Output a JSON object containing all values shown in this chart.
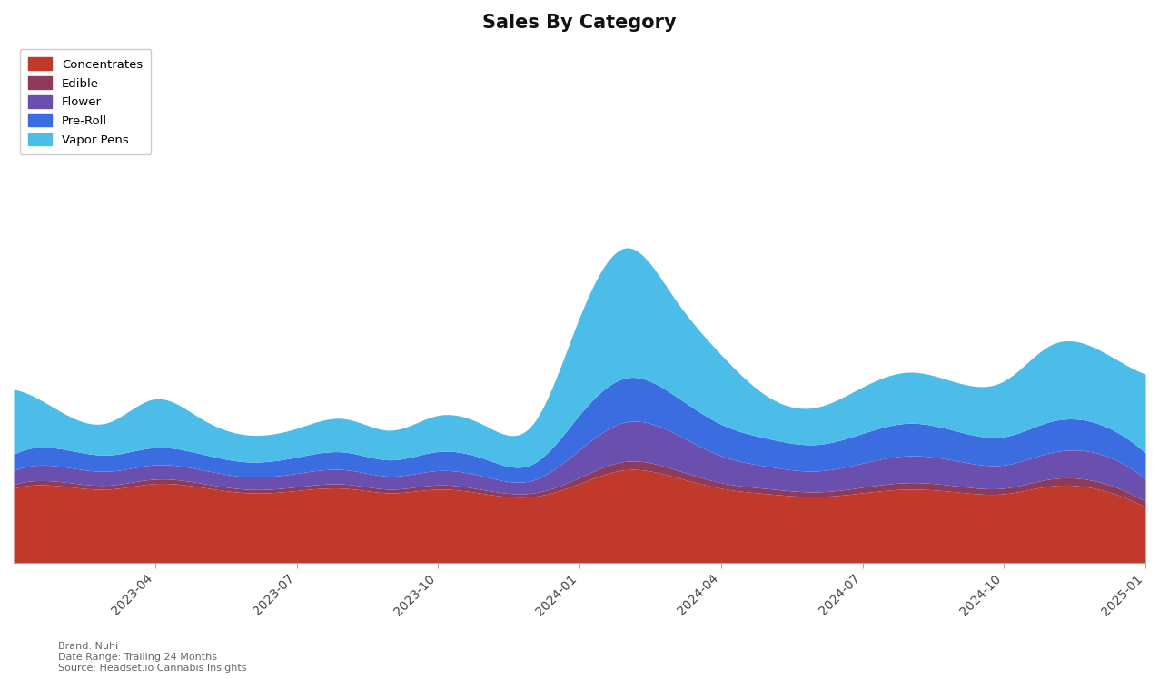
{
  "title": "Sales By Category",
  "categories": [
    "Concentrates",
    "Edible",
    "Flower",
    "Pre-Roll",
    "Vapor Pens"
  ],
  "colors": [
    "#c0392b",
    "#8e3a59",
    "#6b4faf",
    "#3b6de0",
    "#4bbde8"
  ],
  "x_labels": [
    "2023-04",
    "2023-07",
    "2023-10",
    "2024-01",
    "2024-04",
    "2024-07",
    "2024-10",
    "2025-01"
  ],
  "background_color": "#ffffff",
  "brand_text": "Brand: Nuhi\nDate Range: Trailing 24 Months\nSource: Headset.io Cannabis Insights",
  "concentrates": [
    1600,
    1650,
    1580,
    1700,
    1620,
    1500,
    1550,
    1600,
    1500,
    1580,
    1480,
    1420,
    1700,
    2000,
    1850,
    1600,
    1480,
    1420,
    1500,
    1580,
    1520,
    1480,
    1650,
    1580,
    1200
  ],
  "edible": [
    80,
    90,
    85,
    95,
    85,
    75,
    80,
    90,
    80,
    90,
    80,
    75,
    130,
    180,
    160,
    120,
    110,
    100,
    120,
    140,
    130,
    120,
    150,
    160,
    120
  ],
  "flower": [
    300,
    330,
    300,
    310,
    290,
    270,
    290,
    310,
    280,
    310,
    290,
    275,
    600,
    850,
    780,
    580,
    480,
    450,
    520,
    580,
    540,
    500,
    570,
    610,
    480
  ],
  "pre_roll": [
    350,
    380,
    350,
    370,
    340,
    320,
    350,
    380,
    350,
    410,
    380,
    350,
    750,
    950,
    820,
    680,
    600,
    570,
    640,
    700,
    640,
    610,
    670,
    640,
    560
  ],
  "vapor_pens": [
    1400,
    800,
    700,
    1050,
    750,
    580,
    620,
    720,
    640,
    780,
    720,
    850,
    2100,
    2800,
    2100,
    1500,
    900,
    800,
    1000,
    1100,
    1050,
    1200,
    1650,
    1600,
    1700
  ]
}
